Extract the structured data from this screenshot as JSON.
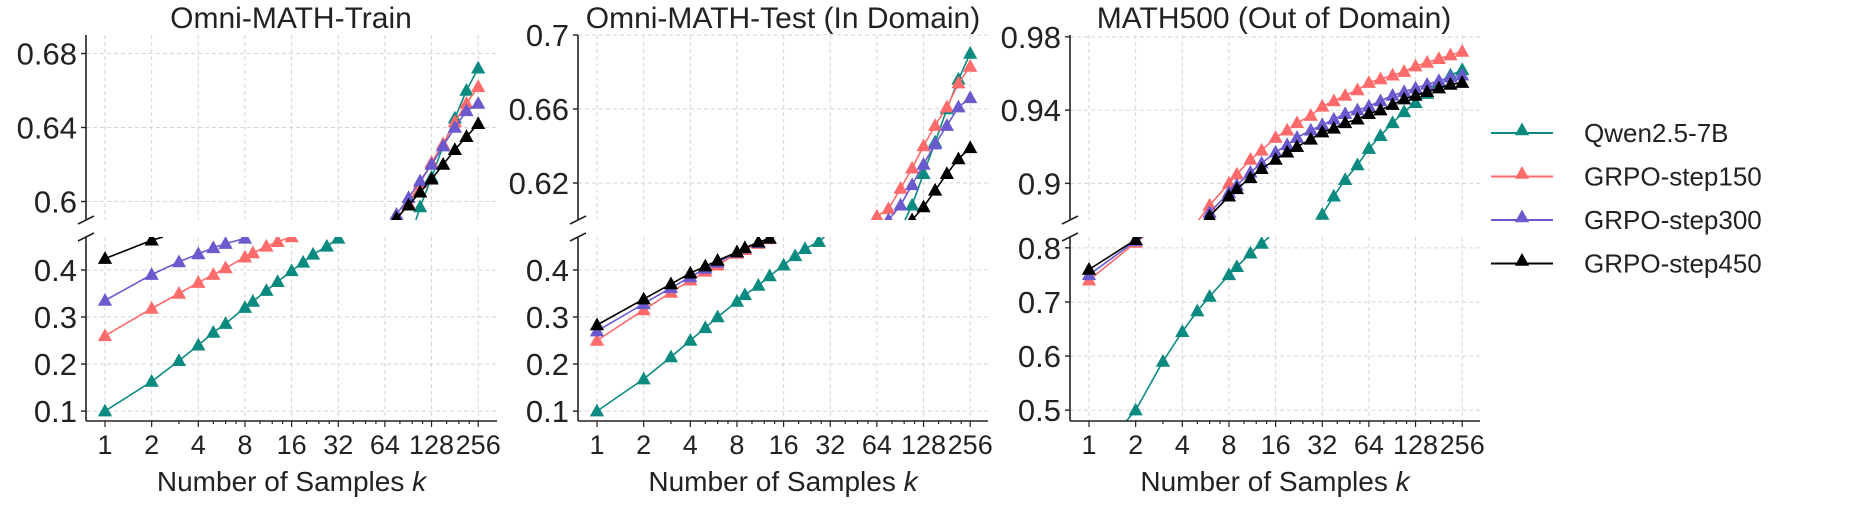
{
  "chart_data": [
    {
      "type": "line",
      "title": "Omni-MATH-Train",
      "xlabel": "Number of Samples k",
      "xscale": "log2",
      "x_ticks": [
        "1",
        "2",
        "4",
        "8",
        "16",
        "32",
        "64",
        "128",
        "256"
      ],
      "broken_y_axis": true,
      "ylim_upper": [
        0.59,
        0.69
      ],
      "ylim_lower": [
        0.079,
        0.47
      ],
      "y_ticks_upper": [
        "0.6",
        "0.64",
        "0.68"
      ],
      "y_ticks_lower": [
        "0.1",
        "0.2",
        "0.3",
        "0.4"
      ],
      "grid": true,
      "x": [
        1,
        2,
        3,
        4,
        5,
        6,
        8,
        9,
        11,
        13,
        16,
        19,
        22,
        27,
        32,
        38,
        45,
        54,
        64,
        76,
        91,
        108,
        128,
        152,
        181,
        215,
        256
      ],
      "series": [
        {
          "name": "Qwen2.5-7B",
          "values": [
            0.1,
            0.163,
            0.207,
            0.24,
            0.267,
            0.286,
            0.32,
            0.333,
            0.356,
            0.375,
            0.398,
            0.416,
            0.433,
            0.45,
            0.467,
            0.485,
            0.503,
            0.522,
            0.54,
            0.56,
            0.578,
            0.597,
            0.613,
            0.63,
            0.645,
            0.66,
            0.672
          ]
        },
        {
          "name": "GRPO-step150",
          "values": [
            0.26,
            0.318,
            0.35,
            0.373,
            0.39,
            0.404,
            0.427,
            0.436,
            0.45,
            0.46,
            0.47,
            0.484,
            0.498,
            0.512,
            0.526,
            0.54,
            0.553,
            0.566,
            0.578,
            0.59,
            0.599,
            0.61,
            0.621,
            0.631,
            0.643,
            0.653,
            0.662
          ]
        },
        {
          "name": "GRPO-step300",
          "values": [
            0.335,
            0.39,
            0.417,
            0.434,
            0.447,
            0.456,
            0.467,
            0.477,
            0.486,
            0.496,
            0.506,
            0.515,
            0.525,
            0.535,
            0.544,
            0.554,
            0.564,
            0.574,
            0.583,
            0.593,
            0.602,
            0.611,
            0.62,
            0.63,
            0.64,
            0.649,
            0.653
          ]
        },
        {
          "name": "GRPO-step450",
          "values": [
            0.424,
            0.463,
            0.48,
            0.49,
            0.5,
            0.507,
            0.517,
            0.523,
            0.532,
            0.54,
            0.548,
            0.555,
            0.562,
            0.568,
            0.573,
            0.578,
            0.582,
            0.585,
            0.588,
            0.591,
            0.598,
            0.605,
            0.612,
            0.62,
            0.628,
            0.635,
            0.642
          ]
        }
      ]
    },
    {
      "type": "line",
      "title": "Omni-MATH-Test (In Domain)",
      "xlabel": "Number of Samples k",
      "xscale": "log2",
      "x_ticks": [
        "1",
        "2",
        "4",
        "8",
        "16",
        "32",
        "64",
        "128",
        "256"
      ],
      "broken_y_axis": true,
      "ylim_upper": [
        0.6,
        0.7
      ],
      "ylim_lower": [
        0.079,
        0.47
      ],
      "y_ticks_upper": [
        "0.62",
        "0.66",
        "0.7"
      ],
      "y_ticks_lower": [
        "0.1",
        "0.2",
        "0.3",
        "0.4"
      ],
      "grid": true,
      "x": [
        1,
        2,
        3,
        4,
        5,
        6,
        8,
        9,
        11,
        13,
        16,
        19,
        22,
        27,
        32,
        38,
        45,
        54,
        64,
        76,
        91,
        108,
        128,
        152,
        181,
        215,
        256
      ],
      "series": [
        {
          "name": "Qwen2.5-7B",
          "values": [
            0.1,
            0.168,
            0.215,
            0.25,
            0.277,
            0.3,
            0.333,
            0.347,
            0.367,
            0.387,
            0.41,
            0.43,
            0.445,
            0.46,
            0.48,
            0.5,
            0.52,
            0.54,
            0.56,
            0.58,
            0.595,
            0.608,
            0.625,
            0.642,
            0.66,
            0.676,
            0.69
          ]
        },
        {
          "name": "GRPO-step150",
          "values": [
            0.25,
            0.315,
            0.352,
            0.378,
            0.397,
            0.41,
            0.435,
            0.443,
            0.456,
            0.466,
            0.48,
            0.497,
            0.515,
            0.535,
            0.555,
            0.573,
            0.59,
            0.598,
            0.602,
            0.606,
            0.617,
            0.628,
            0.64,
            0.651,
            0.661,
            0.674,
            0.683
          ]
        },
        {
          "name": "GRPO-step300",
          "values": [
            0.27,
            0.328,
            0.362,
            0.385,
            0.403,
            0.416,
            0.437,
            0.446,
            0.458,
            0.467,
            0.478,
            0.493,
            0.51,
            0.528,
            0.546,
            0.563,
            0.58,
            0.59,
            0.595,
            0.6,
            0.608,
            0.619,
            0.63,
            0.641,
            0.651,
            0.661,
            0.666
          ]
        },
        {
          "name": "GRPO-step450",
          "values": [
            0.283,
            0.338,
            0.37,
            0.393,
            0.408,
            0.42,
            0.438,
            0.447,
            0.459,
            0.467,
            0.477,
            0.49,
            0.503,
            0.518,
            0.532,
            0.546,
            0.56,
            0.574,
            0.582,
            0.588,
            0.594,
            0.6,
            0.607,
            0.616,
            0.625,
            0.633,
            0.639
          ]
        }
      ]
    },
    {
      "type": "line",
      "title": "MATH500 (Out of Domain)",
      "xlabel": "Number of Samples k",
      "xscale": "log2",
      "x_ticks": [
        "1",
        "2",
        "4",
        "8",
        "16",
        "32",
        "64",
        "128",
        "256"
      ],
      "broken_y_axis": true,
      "ylim_upper": [
        0.88,
        0.981
      ],
      "ylim_lower": [
        0.48,
        0.82
      ],
      "y_ticks_upper": [
        "0.9",
        "0.94",
        "0.98"
      ],
      "y_ticks_lower": [
        "0.5",
        "0.6",
        "0.7",
        "0.8"
      ],
      "grid": true,
      "x": [
        1,
        2,
        3,
        4,
        5,
        6,
        8,
        9,
        11,
        13,
        16,
        19,
        22,
        27,
        32,
        38,
        45,
        54,
        64,
        76,
        91,
        108,
        128,
        152,
        181,
        215,
        256
      ],
      "series": [
        {
          "name": "Qwen2.5-7B",
          "values": [
            0.4,
            0.5,
            0.59,
            0.645,
            0.683,
            0.71,
            0.75,
            0.765,
            0.79,
            0.808,
            0.83,
            0.845,
            0.858,
            0.87,
            0.883,
            0.893,
            0.902,
            0.91,
            0.919,
            0.926,
            0.933,
            0.939,
            0.944,
            0.949,
            0.955,
            0.959,
            0.962
          ]
        },
        {
          "name": "GRPO-step150",
          "values": [
            0.74,
            0.81,
            0.845,
            0.866,
            0.879,
            0.888,
            0.9,
            0.905,
            0.913,
            0.918,
            0.925,
            0.929,
            0.933,
            0.937,
            0.942,
            0.945,
            0.948,
            0.951,
            0.955,
            0.957,
            0.959,
            0.961,
            0.964,
            0.966,
            0.968,
            0.97,
            0.972
          ]
        },
        {
          "name": "GRPO-step300",
          "values": [
            0.75,
            0.813,
            0.84,
            0.86,
            0.875,
            0.884,
            0.895,
            0.899,
            0.906,
            0.911,
            0.917,
            0.921,
            0.925,
            0.929,
            0.932,
            0.935,
            0.938,
            0.94,
            0.942,
            0.945,
            0.948,
            0.95,
            0.952,
            0.954,
            0.956,
            0.958,
            0.959
          ]
        },
        {
          "name": "GRPO-step450",
          "values": [
            0.76,
            0.815,
            0.84,
            0.858,
            0.872,
            0.882,
            0.893,
            0.897,
            0.903,
            0.908,
            0.913,
            0.917,
            0.92,
            0.924,
            0.928,
            0.93,
            0.933,
            0.935,
            0.938,
            0.94,
            0.943,
            0.946,
            0.948,
            0.95,
            0.952,
            0.954,
            0.955
          ]
        }
      ]
    }
  ],
  "legend": {
    "placement": "right",
    "marker": "triangle",
    "items": [
      {
        "label": "Qwen2.5-7B",
        "color": "#0b8a80"
      },
      {
        "label": "GRPO-step150",
        "color": "#ff6b6b"
      },
      {
        "label": "GRPO-step300",
        "color": "#6a5acd"
      },
      {
        "label": "GRPO-step450",
        "color": "#000000"
      }
    ]
  }
}
